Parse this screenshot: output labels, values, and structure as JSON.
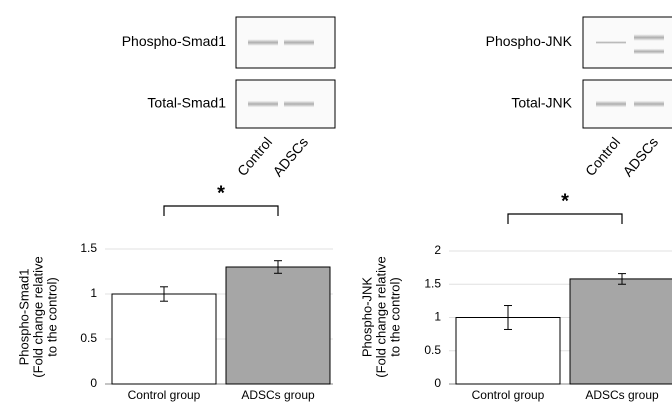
{
  "blots": [
    {
      "rows": [
        "Phospho-Smad1",
        "Total-Smad1"
      ],
      "lanes": [
        "Control",
        "ADSCs"
      ]
    },
    {
      "rows": [
        "Phospho-JNK",
        "Total-JNK"
      ],
      "lanes": [
        "Control",
        "ADSCs"
      ]
    }
  ],
  "chart_data": [
    {
      "type": "bar",
      "y_label": [
        "Phospho-Smad1",
        "(Fold change relative",
        "to the control)"
      ],
      "categories": [
        "Control group",
        "ADSCs group"
      ],
      "values": [
        1.0,
        1.3
      ],
      "errors": [
        0.08,
        0.07
      ],
      "colors": [
        "#ffffff",
        "#a6a6a6"
      ],
      "ylim": [
        0,
        1.5
      ],
      "yticks": [
        0,
        0.5,
        1,
        1.5
      ],
      "grid": true,
      "annotation": "*"
    },
    {
      "type": "bar",
      "y_label": [
        "Phospho-JNK",
        "(Fold change relative",
        "to the control)"
      ],
      "categories": [
        "Control group",
        "ADSCs group"
      ],
      "values": [
        1.0,
        1.58
      ],
      "errors": [
        0.18,
        0.08
      ],
      "colors": [
        "#ffffff",
        "#a6a6a6"
      ],
      "ylim": [
        0,
        2
      ],
      "yticks": [
        0,
        0.5,
        1,
        1.5,
        2
      ],
      "grid": true,
      "annotation": "*"
    }
  ]
}
